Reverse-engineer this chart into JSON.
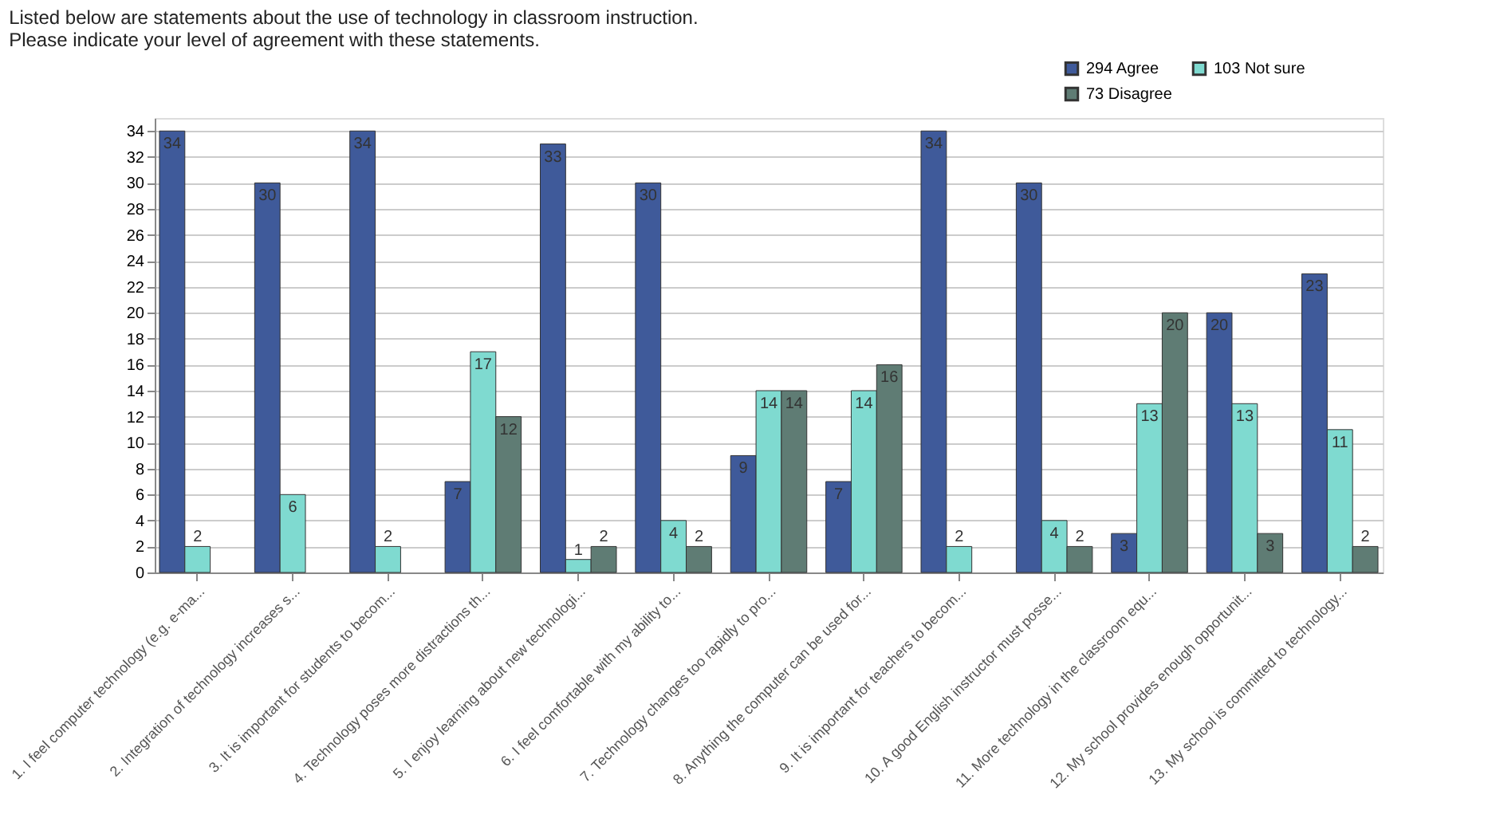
{
  "chart_data": {
    "type": "bar",
    "title": [
      "Listed below are statements about the use of technology in classroom instruction.",
      "Please indicate your level of agreement with these statements."
    ],
    "categories": [
      "1. I feel computer technology (e.g. e-ma...",
      "2. Integration of technology increases s...",
      "3. It is important for students to becom...",
      "4. Technology poses more distractions th...",
      "5. I enjoy learning about new technologi...",
      "6. I feel comfortable with my ability to...",
      "7. Technology changes too rapidly to pro...",
      "8. Anything the computer can be used for...",
      "9. It is important for teachers to becom...",
      "10. A good English instructor must posse...",
      "11. More technology in the classroom equ...",
      "12. My school provides enough opportunit...",
      "13. My school is committed to technology..."
    ],
    "series": [
      {
        "name": "294 Agree",
        "color": "#3f5a9a",
        "values": [
          34,
          30,
          34,
          7,
          33,
          30,
          9,
          7,
          34,
          30,
          3,
          20,
          23
        ]
      },
      {
        "name": "103 Not sure",
        "color": "#7fdad0",
        "values": [
          2,
          6,
          2,
          17,
          1,
          4,
          14,
          14,
          2,
          4,
          13,
          13,
          11
        ]
      },
      {
        "name": "73 Disagree",
        "color": "#5f7c74",
        "values": [
          null,
          null,
          null,
          12,
          2,
          2,
          14,
          16,
          null,
          2,
          20,
          3,
          2
        ]
      }
    ],
    "ylim": [
      0,
      35
    ],
    "yticks": [
      0,
      2,
      4,
      6,
      8,
      10,
      12,
      14,
      16,
      18,
      20,
      22,
      24,
      26,
      28,
      30,
      32,
      34
    ],
    "grid": "y",
    "legend": "top right",
    "data_labels": true
  }
}
